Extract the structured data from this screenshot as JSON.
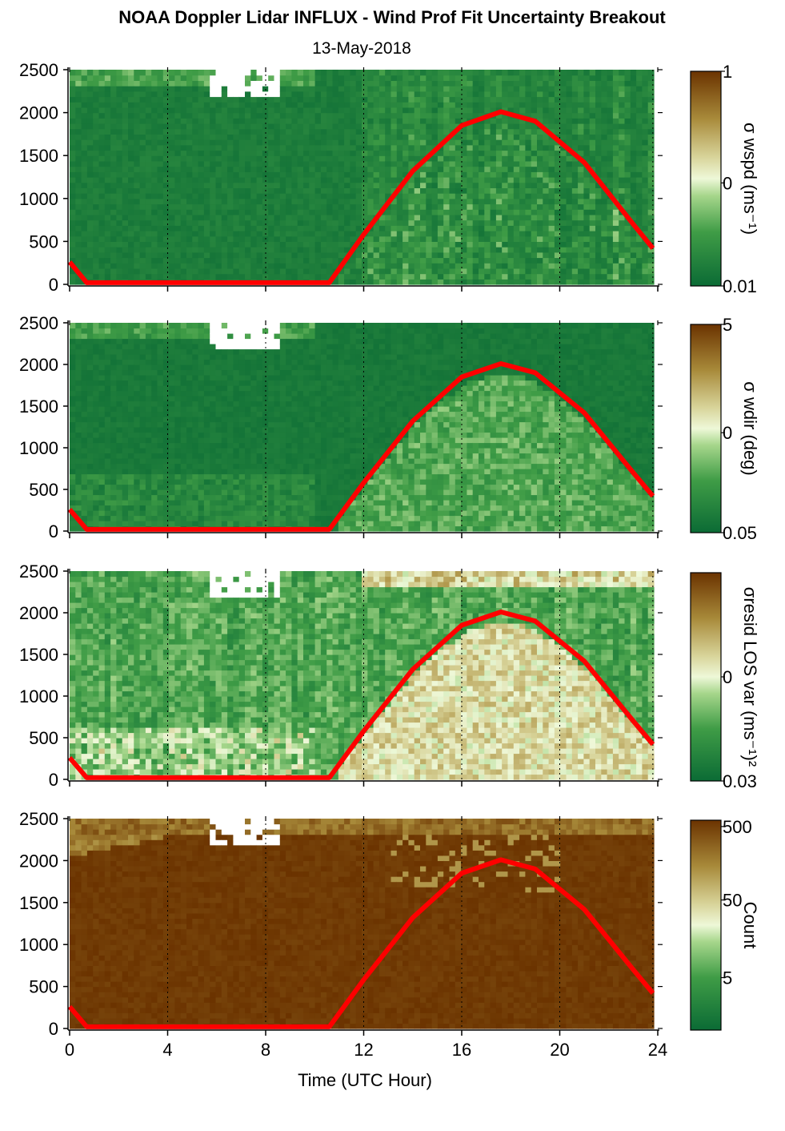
{
  "title": "NOAA Doppler Lidar INFLUX - Wind Prof Fit Uncertainty Breakout",
  "subtitle": "13-May-2018",
  "colors": {
    "dark_green": "#0b6b35",
    "light": "#e8f5d0",
    "brown": "#6b3300",
    "sun_line": "#ff0000",
    "blank": "#ffffff"
  },
  "chart_data": [
    {
      "type": "heatmap",
      "name": "wspd-panel",
      "x_range": [
        0,
        24
      ],
      "y_range": [
        0,
        2500
      ],
      "x_ticks": [
        "0",
        "4",
        "8",
        "12",
        "16",
        "20",
        "24"
      ],
      "y_ticks": [
        "0",
        "500",
        "1000",
        "1500",
        "2000",
        "2500"
      ],
      "colorbar_label": "σ wspd (ms⁻¹)",
      "colorbar_ticks": [
        "1",
        "0",
        "0.01"
      ],
      "colorbar_scale": "log",
      "colorbar_range": [
        0.01,
        1
      ],
      "description_values": "mostly low uncertainty (dark green) below 2200 m; higher variability after 12 UTC",
      "sun_elevation_curve": {
        "x": [
          0,
          0.7,
          10.6,
          12,
          14,
          16,
          17.6,
          19,
          21,
          23,
          23.8
        ],
        "y": [
          260,
          20,
          20,
          580,
          1320,
          1850,
          2010,
          1900,
          1420,
          700,
          420
        ]
      }
    },
    {
      "type": "heatmap",
      "name": "wdir-panel",
      "x_range": [
        0,
        24
      ],
      "y_range": [
        0,
        2500
      ],
      "x_ticks": [
        "0",
        "4",
        "8",
        "12",
        "16",
        "20",
        "24"
      ],
      "y_ticks": [
        "0",
        "500",
        "1000",
        "1500",
        "2000",
        "2500"
      ],
      "colorbar_label": "σ wdir (deg)",
      "colorbar_ticks": [
        "5",
        "0",
        "0.05"
      ],
      "colorbar_scale": "log",
      "colorbar_range": [
        0.05,
        5
      ]
    },
    {
      "type": "heatmap",
      "name": "resid-panel",
      "x_range": [
        0,
        24
      ],
      "y_range": [
        0,
        2500
      ],
      "x_ticks": [
        "0",
        "4",
        "8",
        "12",
        "16",
        "20",
        "24"
      ],
      "y_ticks": [
        "0",
        "500",
        "1000",
        "1500",
        "2000",
        "2500"
      ],
      "colorbar_label": "σresid LOS var (ms⁻¹)²",
      "colorbar_ticks": [
        "0",
        "0.03"
      ],
      "colorbar_scale": "log"
    },
    {
      "type": "heatmap",
      "name": "count-panel",
      "x_range": [
        0,
        24
      ],
      "y_range": [
        0,
        2500
      ],
      "x_ticks": [
        "0",
        "4",
        "8",
        "12",
        "16",
        "20",
        "24"
      ],
      "y_ticks": [
        "0",
        "500",
        "1000",
        "1500",
        "2000",
        "2500"
      ],
      "xlabel": "Time (UTC Hour)",
      "colorbar_label": "Count",
      "colorbar_ticks": [
        "500",
        "50",
        "5"
      ],
      "colorbar_scale": "log"
    }
  ],
  "xlabel": "Time (UTC Hour)"
}
